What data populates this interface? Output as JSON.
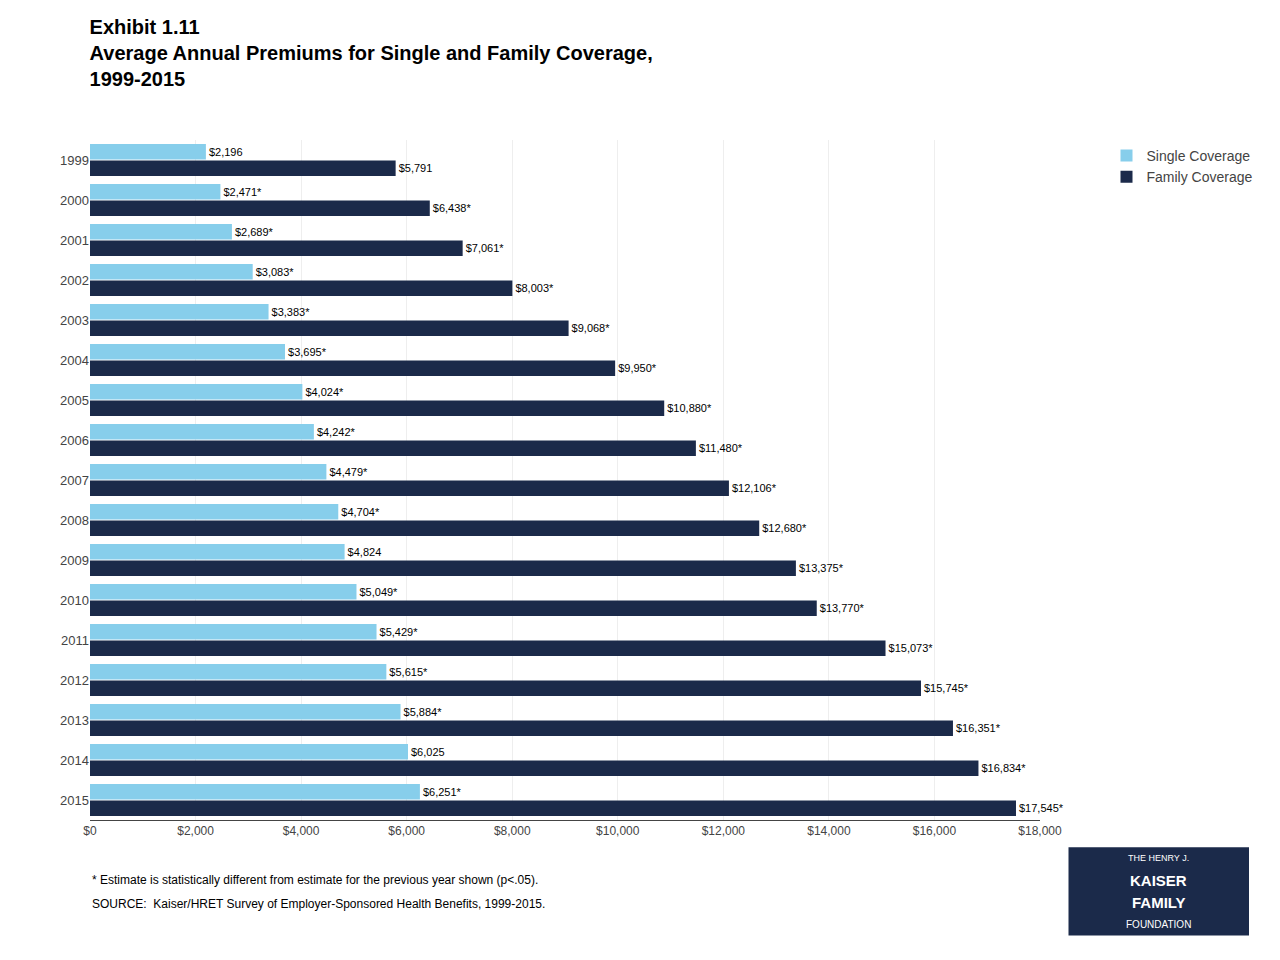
{
  "chart_data": {
    "type": "bar",
    "orientation": "horizontal",
    "title": [
      "Exhibit 1.11",
      "Average Annual Premiums for Single and Family Coverage,",
      "1999-2015"
    ],
    "categories": [
      "1999",
      "2000",
      "2001",
      "2002",
      "2003",
      "2004",
      "2005",
      "2006",
      "2007",
      "2008",
      "2009",
      "2010",
      "2011",
      "2012",
      "2013",
      "2014",
      "2015"
    ],
    "series": [
      {
        "name": "Single Coverage",
        "color": "#87CEEB",
        "values": [
          2196,
          2471,
          2689,
          3083,
          3383,
          3695,
          4024,
          4242,
          4479,
          4704,
          4824,
          5049,
          5429,
          5615,
          5884,
          6025,
          6251
        ],
        "value_labels": [
          "$2,196",
          "$2,471*",
          "$2,689*",
          "$3,083*",
          "$3,383*",
          "$3,695*",
          "$4,024*",
          "$4,242*",
          "$4,479*",
          "$4,704*",
          "$4,824",
          "$5,049*",
          "$5,429*",
          "$5,615*",
          "$5,884*",
          "$6,025",
          "$6,251*"
        ]
      },
      {
        "name": "Family Coverage",
        "color": "#1B2A4A",
        "values": [
          5791,
          6438,
          7061,
          8003,
          9068,
          9950,
          10880,
          11480,
          12106,
          12680,
          13375,
          13770,
          15073,
          15745,
          16351,
          16834,
          17545
        ],
        "value_labels": [
          "$5,791",
          "$6,438*",
          "$7,061*",
          "$8,003*",
          "$9,068*",
          "$9,950*",
          "$10,880*",
          "$11,480*",
          "$12,106*",
          "$12,680*",
          "$13,375*",
          "$13,770*",
          "$15,073*",
          "$15,745*",
          "$16,351*",
          "$16,834*",
          "$17,545*"
        ]
      }
    ],
    "xlim": [
      0,
      18000
    ],
    "xticks": [
      {
        "value": 0,
        "label": "$0"
      },
      {
        "value": 2000,
        "label": "$2,000"
      },
      {
        "value": 4000,
        "label": "$4,000"
      },
      {
        "value": 6000,
        "label": "$6,000"
      },
      {
        "value": 8000,
        "label": "$8,000"
      },
      {
        "value": 10000,
        "label": "$10,000"
      },
      {
        "value": 12000,
        "label": "$12,000"
      },
      {
        "value": 14000,
        "label": "$14,000"
      },
      {
        "value": 16000,
        "label": "$16,000"
      },
      {
        "value": 18000,
        "label": "$18,000"
      }
    ],
    "grid": true,
    "data_labels": true,
    "legend": "right",
    "annotations": [
      "* Estimate is statistically different from estimate for the previous year shown (p<.05).",
      "SOURCE:  Kaiser/HRET Survey of Employer-Sponsored Health Benefits, 1999-2015."
    ],
    "logo": [
      "THE HENRY J.",
      "KAISER",
      "FAMILY",
      "FOUNDATION"
    ]
  }
}
